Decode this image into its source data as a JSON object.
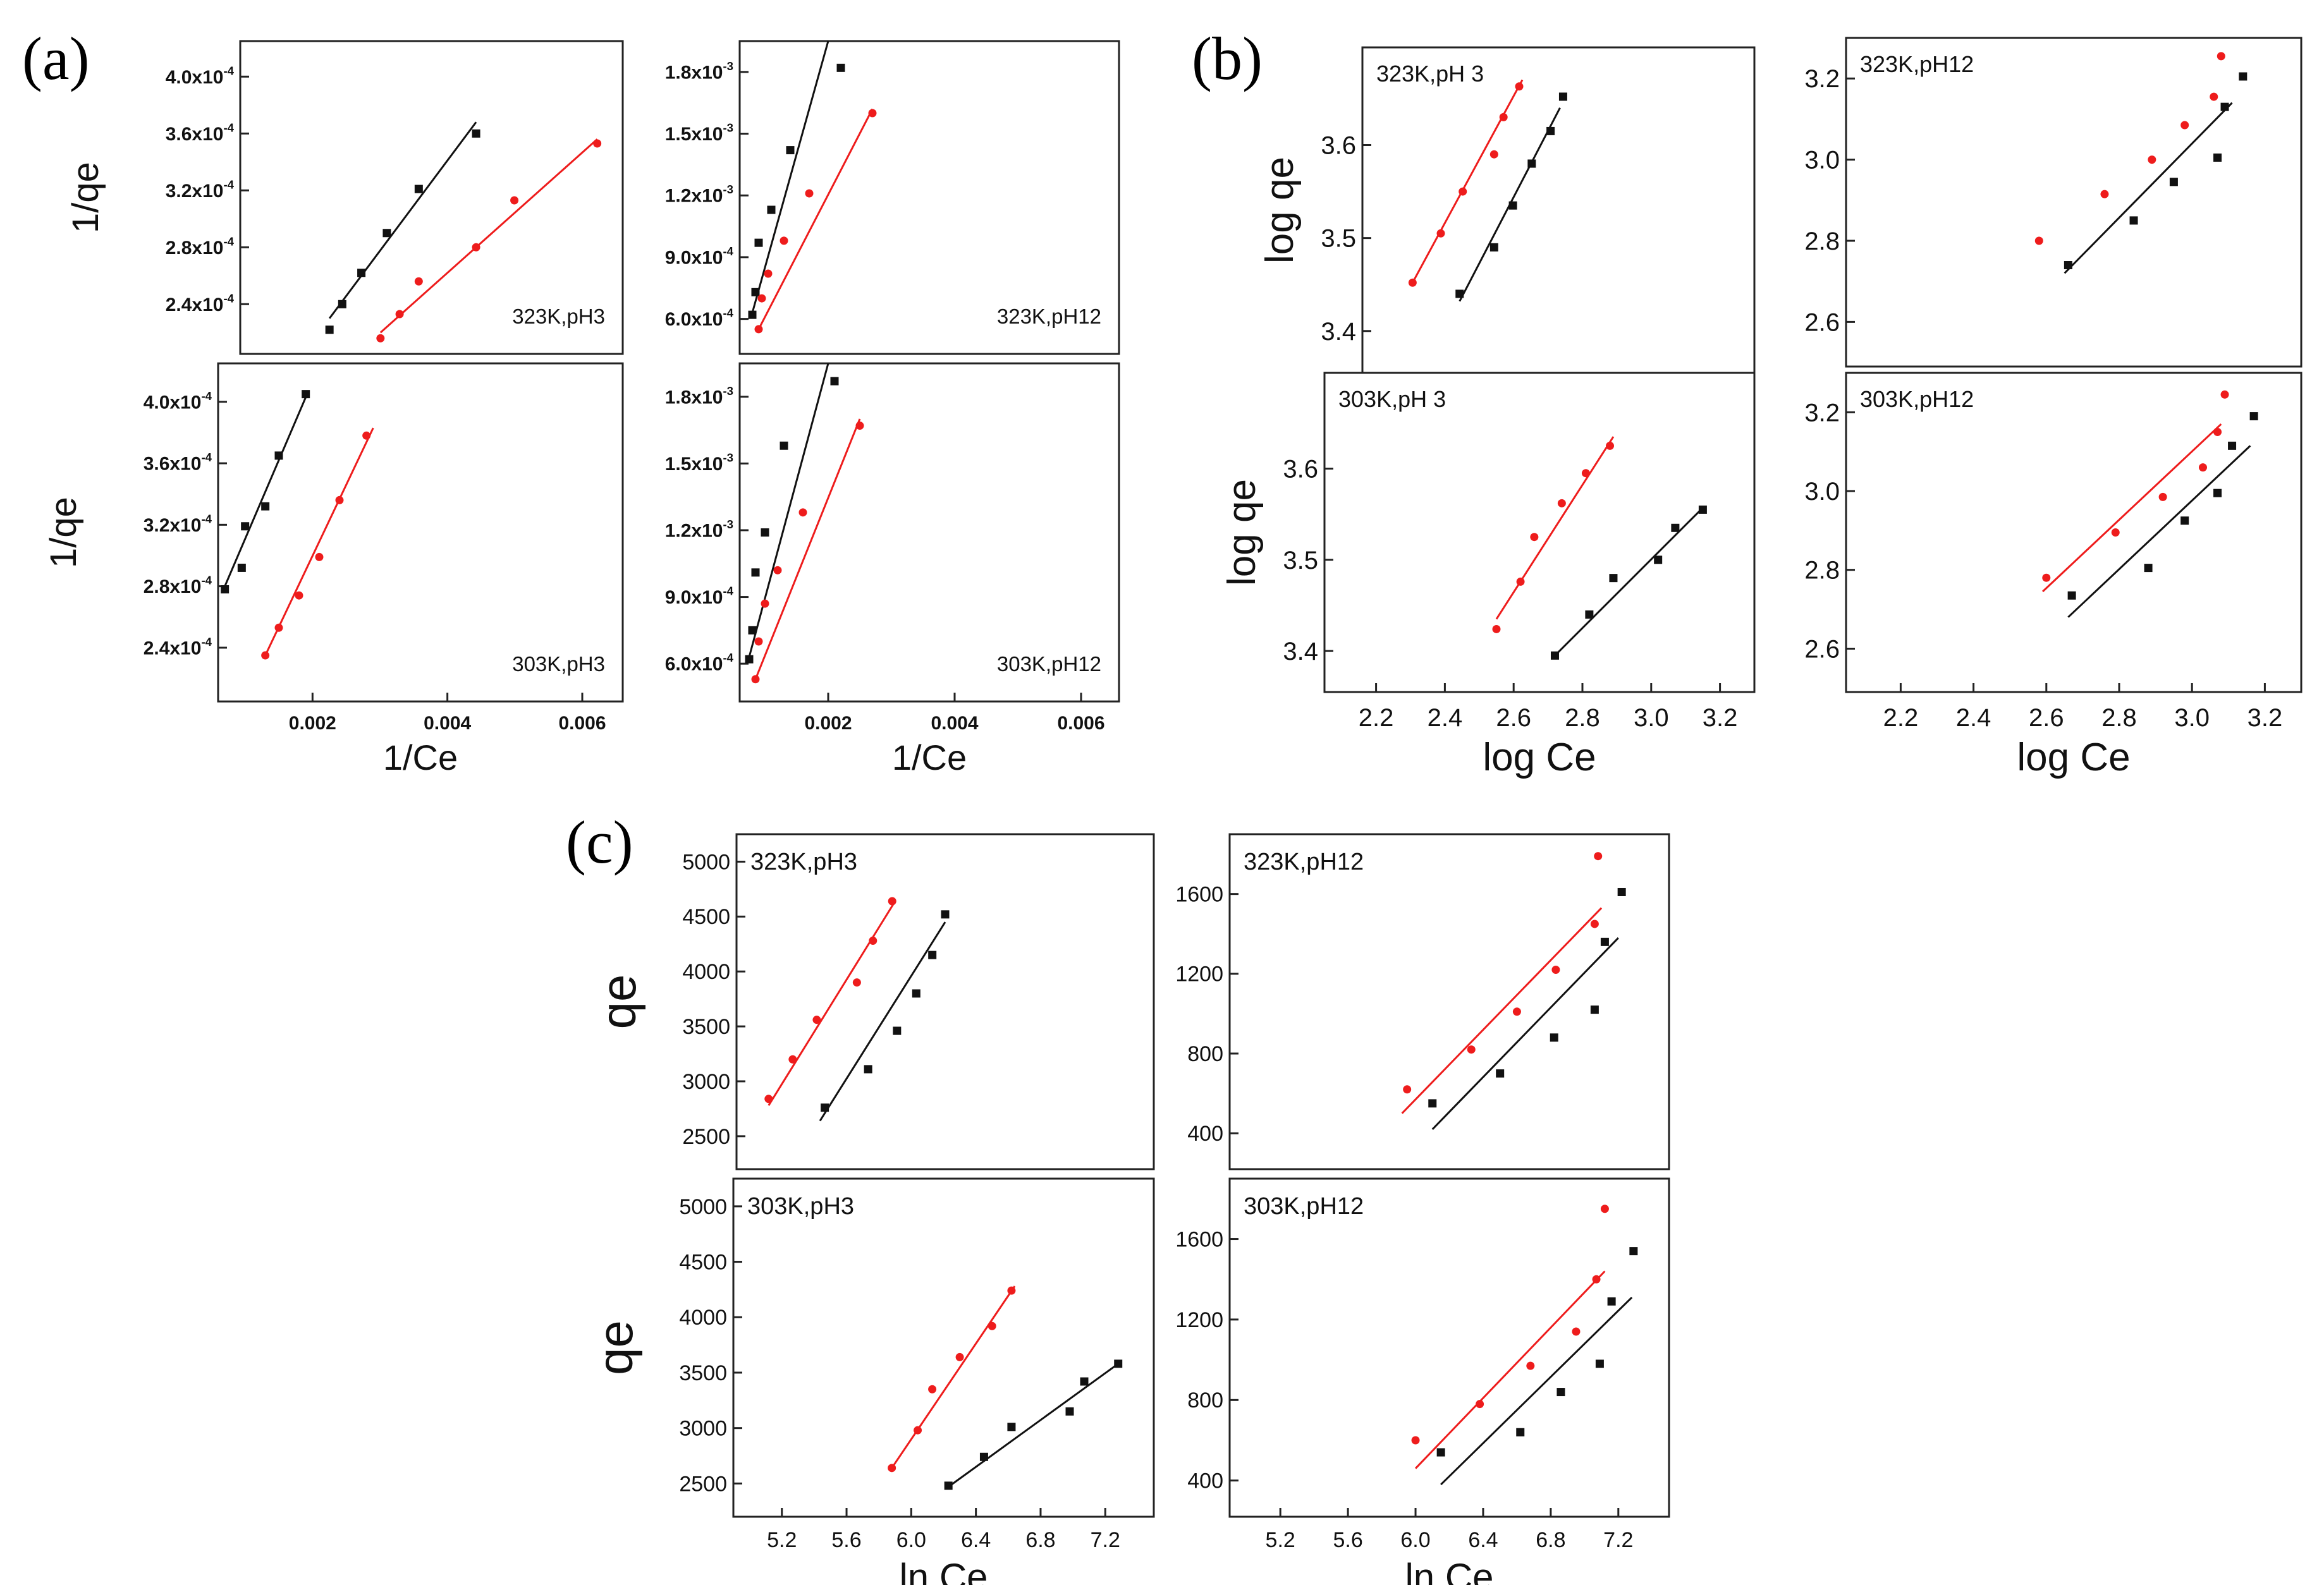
{
  "figure": {
    "panel_labels": [
      "(a)",
      "(b)",
      "(c)"
    ],
    "colors": {
      "black_series": "#111111",
      "red_series": "#ee1c1c",
      "axis": "#222222"
    }
  },
  "chart_data": [
    {
      "id": "a1",
      "group": "(a)",
      "type": "scatter",
      "title": "323K,pH3",
      "xlabel": "",
      "ylabel": "1/qe",
      "xlim": [
        0.0006,
        0.0066
      ],
      "ylim": [
        0.000205,
        0.000425
      ],
      "xticks": [],
      "yticks": [
        0.00024,
        0.00028,
        0.00032,
        0.00036,
        0.0004
      ],
      "ytick_labels": [
        "2.4x10-4",
        "2.8x10-4",
        "3.2x10-4",
        "3.6x10-4",
        "4.0x10-4"
      ],
      "series": [
        {
          "name": "black",
          "x": [
            0.002,
            0.0022,
            0.0025,
            0.0029,
            0.0034,
            0.0043
          ],
          "y": [
            0.000222,
            0.00024,
            0.000262,
            0.00029,
            0.000321,
            0.00036
          ],
          "fit": [
            [
              0.002,
              0.00023
            ],
            [
              0.0043,
              0.000368
            ]
          ]
        },
        {
          "name": "red",
          "x": [
            0.0028,
            0.0031,
            0.0034,
            0.0043,
            0.0049,
            0.0062
          ],
          "y": [
            0.000216,
            0.000233,
            0.000256,
            0.00028,
            0.000313,
            0.000353
          ],
          "fit": [
            [
              0.0028,
              0.00022
            ],
            [
              0.0062,
              0.000356
            ]
          ]
        }
      ]
    },
    {
      "id": "a2",
      "group": "(a)",
      "type": "scatter",
      "title": "323K,pH12",
      "xlabel": "",
      "ylabel": "",
      "xlim": [
        0.0006,
        0.0066
      ],
      "ylim": [
        0.00043,
        0.00195
      ],
      "xticks": [],
      "yticks": [
        0.0006,
        0.0009,
        0.0012,
        0.0015,
        0.0018
      ],
      "ytick_labels": [
        "6.0x10-4",
        "9.0x10-4",
        "1.2x10-3",
        "1.5x10-3",
        "1.8x10-3"
      ],
      "series": [
        {
          "name": "black",
          "x": [
            0.0008,
            0.00085,
            0.0009,
            0.0011,
            0.0014,
            0.0022
          ],
          "y": [
            0.00062,
            0.00073,
            0.00097,
            0.00113,
            0.00142,
            0.00182
          ],
          "fit": [
            [
              0.0008,
              0.00063
            ],
            [
              0.002,
              0.00195
            ]
          ]
        },
        {
          "name": "red",
          "x": [
            0.0009,
            0.00095,
            0.00105,
            0.0013,
            0.0017,
            0.0027
          ],
          "y": [
            0.00055,
            0.0007,
            0.00082,
            0.00098,
            0.00121,
            0.0016
          ],
          "fit": [
            [
              0.0009,
              0.00055
            ],
            [
              0.0027,
              0.00162
            ]
          ]
        }
      ]
    },
    {
      "id": "a3",
      "group": "(a)",
      "type": "scatter",
      "title": "303K,pH3",
      "xlabel": "1/Ce",
      "ylabel": "1/qe",
      "xlim": [
        0.0006,
        0.0066
      ],
      "ylim": [
        0.000205,
        0.000425
      ],
      "xticks": [
        0.002,
        0.004,
        0.006
      ],
      "xtick_labels": [
        "0.002",
        "0.004",
        "0.006"
      ],
      "yticks": [
        0.00024,
        0.00028,
        0.00032,
        0.00036,
        0.0004
      ],
      "ytick_labels": [
        "2.4x10-4",
        "2.8x10-4",
        "3.2x10-4",
        "3.6x10-4",
        "4.0x10-4"
      ],
      "series": [
        {
          "name": "black",
          "x": [
            0.0007,
            0.00095,
            0.001,
            0.0013,
            0.0015,
            0.0019
          ],
          "y": [
            0.000278,
            0.000292,
            0.000319,
            0.000332,
            0.000365,
            0.000405
          ],
          "fit": [
            [
              0.0007,
              0.00028
            ],
            [
              0.0019,
              0.000403
            ]
          ]
        },
        {
          "name": "red",
          "x": [
            0.0013,
            0.0015,
            0.0018,
            0.0021,
            0.0024,
            0.0028
          ],
          "y": [
            0.000235,
            0.000253,
            0.000274,
            0.000299,
            0.000336,
            0.000378
          ],
          "fit": [
            [
              0.0013,
              0.000235
            ],
            [
              0.0029,
              0.000383
            ]
          ]
        }
      ]
    },
    {
      "id": "a4",
      "group": "(a)",
      "type": "scatter",
      "title": "303K,pH12",
      "xlabel": "1/Ce",
      "ylabel": "",
      "xlim": [
        0.0006,
        0.0066
      ],
      "ylim": [
        0.00043,
        0.00195
      ],
      "xticks": [
        0.002,
        0.004,
        0.006
      ],
      "xtick_labels": [
        "0.002",
        "0.004",
        "0.006"
      ],
      "yticks": [
        0.0006,
        0.0009,
        0.0012,
        0.0015,
        0.0018
      ],
      "ytick_labels": [
        "6.0x10-4",
        "9.0x10-4",
        "1.2x10-3",
        "1.5x10-3",
        "1.8x10-3"
      ],
      "series": [
        {
          "name": "black",
          "x": [
            0.00075,
            0.0008,
            0.00085,
            0.001,
            0.0013,
            0.0021
          ],
          "y": [
            0.00062,
            0.00075,
            0.00101,
            0.00119,
            0.00158,
            0.00187
          ],
          "fit": [
            [
              0.00075,
              0.00063
            ],
            [
              0.002,
              0.00195
            ]
          ]
        },
        {
          "name": "red",
          "x": [
            0.00085,
            0.0009,
            0.001,
            0.0012,
            0.0016,
            0.0025
          ],
          "y": [
            0.00053,
            0.0007,
            0.00087,
            0.00102,
            0.00128,
            0.00167
          ],
          "fit": [
            [
              0.00085,
              0.00053
            ],
            [
              0.0025,
              0.0017
            ]
          ]
        }
      ]
    },
    {
      "id": "b1",
      "group": "(b)",
      "type": "scatter",
      "title": "323K,pH 3",
      "xlabel": "",
      "ylabel": "log qe",
      "xlim": [
        2.05,
        3.3
      ],
      "ylim": [
        3.355,
        3.705
      ],
      "xticks": [],
      "yticks": [
        3.4,
        3.5,
        3.6
      ],
      "ytick_labels": [
        "3.4",
        "3.5",
        "3.6"
      ],
      "series": [
        {
          "name": "black",
          "x": [
            2.36,
            2.47,
            2.53,
            2.59,
            2.65,
            2.69
          ],
          "y": [
            3.44,
            3.49,
            3.535,
            3.58,
            3.615,
            3.652
          ],
          "fit": [
            [
              2.36,
              3.432
            ],
            [
              2.68,
              3.64
            ]
          ]
        },
        {
          "name": "red",
          "x": [
            2.21,
            2.3,
            2.37,
            2.47,
            2.5,
            2.55
          ],
          "y": [
            3.452,
            3.505,
            3.55,
            3.59,
            3.63,
            3.663
          ],
          "fit": [
            [
              2.21,
              3.452
            ],
            [
              2.56,
              3.67
            ]
          ]
        }
      ]
    },
    {
      "id": "b2",
      "group": "(b)",
      "type": "scatter",
      "title": "323K,pH12",
      "xlabel": "",
      "ylabel": "",
      "xlim": [
        2.05,
        3.3
      ],
      "ylim": [
        2.49,
        3.3
      ],
      "xticks": [],
      "yticks": [
        2.6,
        2.8,
        3.0,
        3.2
      ],
      "ytick_labels": [
        "2.6",
        "2.8",
        "3.0",
        "3.2"
      ],
      "series": [
        {
          "name": "black",
          "x": [
            2.66,
            2.84,
            2.95,
            3.07,
            3.09,
            3.14
          ],
          "y": [
            2.74,
            2.85,
            2.945,
            3.005,
            3.13,
            3.205
          ],
          "fit": [
            [
              2.65,
              2.72
            ],
            [
              3.11,
              3.14
            ]
          ]
        },
        {
          "name": "red",
          "x": [
            2.58,
            2.76,
            2.89,
            2.98,
            3.06,
            3.08
          ],
          "y": [
            2.8,
            2.915,
            3.0,
            3.085,
            3.155,
            3.255
          ],
          "fit": null
        }
      ]
    },
    {
      "id": "b3",
      "group": "(b)",
      "type": "scatter",
      "title": "303K,pH 3",
      "xlabel": "log Ce",
      "ylabel": "log qe",
      "xlim": [
        2.05,
        3.3
      ],
      "ylim": [
        3.355,
        3.705
      ],
      "xticks": [
        2.2,
        2.4,
        2.6,
        2.8,
        3.0,
        3.2
      ],
      "xtick_labels": [
        "2.2",
        "2.4",
        "2.6",
        "2.8",
        "3.0",
        "3.2"
      ],
      "yticks": [
        3.4,
        3.5,
        3.6
      ],
      "ytick_labels": [
        "3.4",
        "3.5",
        "3.6"
      ],
      "series": [
        {
          "name": "black",
          "x": [
            2.72,
            2.82,
            2.89,
            3.02,
            3.07,
            3.15
          ],
          "y": [
            3.395,
            3.44,
            3.48,
            3.5,
            3.535,
            3.555
          ],
          "fit": [
            [
              2.72,
              3.395
            ],
            [
              3.15,
              3.557
            ]
          ]
        },
        {
          "name": "red",
          "x": [
            2.55,
            2.62,
            2.66,
            2.74,
            2.81,
            2.88
          ],
          "y": [
            3.424,
            3.476,
            3.525,
            3.562,
            3.595,
            3.625
          ],
          "fit": [
            [
              2.55,
              3.435
            ],
            [
              2.89,
              3.635
            ]
          ]
        }
      ]
    },
    {
      "id": "b4",
      "group": "(b)",
      "type": "scatter",
      "title": "303K,pH12",
      "xlabel": "log Ce",
      "ylabel": "",
      "xlim": [
        2.05,
        3.3
      ],
      "ylim": [
        2.49,
        3.3
      ],
      "xticks": [
        2.2,
        2.4,
        2.6,
        2.8,
        3.0,
        3.2
      ],
      "xtick_labels": [
        "2.2",
        "2.4",
        "2.6",
        "2.8",
        "3.0",
        "3.2"
      ],
      "yticks": [
        2.6,
        2.8,
        3.0,
        3.2
      ],
      "ytick_labels": [
        "2.6",
        "2.8",
        "3.0",
        "3.2"
      ],
      "series": [
        {
          "name": "black",
          "x": [
            2.67,
            2.88,
            2.98,
            3.07,
            3.11,
            3.17
          ],
          "y": [
            2.735,
            2.805,
            2.925,
            2.995,
            3.115,
            3.19
          ],
          "fit": [
            [
              2.66,
              2.68
            ],
            [
              3.16,
              3.115
            ]
          ]
        },
        {
          "name": "red",
          "x": [
            2.6,
            2.79,
            2.92,
            3.03,
            3.07,
            3.09
          ],
          "y": [
            2.78,
            2.895,
            2.985,
            3.06,
            3.15,
            3.245
          ],
          "fit": [
            [
              2.59,
              2.745
            ],
            [
              3.08,
              3.17
            ]
          ]
        }
      ]
    },
    {
      "id": "c1",
      "group": "(c)",
      "type": "scatter",
      "title": "323K,pH3",
      "xlabel": "",
      "ylabel": "qe",
      "xlim": [
        4.9,
        7.5
      ],
      "ylim": [
        2200,
        5250
      ],
      "xticks": [],
      "yticks": [
        2500,
        3000,
        3500,
        4000,
        4500,
        5000
      ],
      "ytick_labels": [
        "2500",
        "3000",
        "3500",
        "4000",
        "4500",
        "5000"
      ],
      "series": [
        {
          "name": "black",
          "x": [
            5.45,
            5.72,
            5.9,
            6.02,
            6.12,
            6.2
          ],
          "y": [
            2760,
            3110,
            3460,
            3800,
            4150,
            4520
          ],
          "fit": [
            [
              5.42,
              2640
            ],
            [
              6.2,
              4450
            ]
          ]
        },
        {
          "name": "red",
          "x": [
            5.1,
            5.25,
            5.4,
            5.65,
            5.75,
            5.87
          ],
          "y": [
            2840,
            3200,
            3560,
            3900,
            4280,
            4640
          ],
          "fit": [
            [
              5.1,
              2780
            ],
            [
              5.88,
              4620
            ]
          ]
        }
      ]
    },
    {
      "id": "c2",
      "group": "(c)",
      "type": "scatter",
      "title": "323K,pH12",
      "xlabel": "",
      "ylabel": "",
      "xlim": [
        4.9,
        7.5
      ],
      "ylim": [
        220,
        1900
      ],
      "xticks": [],
      "yticks": [
        400,
        800,
        1200,
        1600
      ],
      "ytick_labels": [
        "400",
        "800",
        "1200",
        "1600"
      ],
      "series": [
        {
          "name": "black",
          "x": [
            6.1,
            6.5,
            6.82,
            7.06,
            7.12,
            7.22
          ],
          "y": [
            550,
            700,
            880,
            1020,
            1360,
            1610
          ],
          "fit": [
            [
              6.1,
              420
            ],
            [
              7.2,
              1380
            ]
          ]
        },
        {
          "name": "red",
          "x": [
            5.95,
            6.33,
            6.6,
            6.83,
            7.06,
            7.08
          ],
          "y": [
            620,
            820,
            1010,
            1220,
            1450,
            1790
          ],
          "fit": [
            [
              5.92,
              500
            ],
            [
              7.1,
              1530
            ]
          ]
        }
      ]
    },
    {
      "id": "c3",
      "group": "(c)",
      "type": "scatter",
      "title": "303K,pH3",
      "xlabel": "ln Ce",
      "ylabel": "qe",
      "xlim": [
        4.9,
        7.5
      ],
      "ylim": [
        2200,
        5250
      ],
      "xticks": [
        5.2,
        5.6,
        6.0,
        6.4,
        6.8,
        7.2
      ],
      "xtick_labels": [
        "5.2",
        "5.6",
        "6.0",
        "6.4",
        "6.8",
        "7.2"
      ],
      "yticks": [
        2500,
        3000,
        3500,
        4000,
        4500,
        5000
      ],
      "ytick_labels": [
        "2500",
        "3000",
        "3500",
        "4000",
        "4500",
        "5000"
      ],
      "series": [
        {
          "name": "black",
          "x": [
            6.23,
            6.45,
            6.62,
            6.98,
            7.07,
            7.28
          ],
          "y": [
            2480,
            2740,
            3010,
            3150,
            3420,
            3580
          ],
          "fit": [
            [
              6.23,
              2470
            ],
            [
              7.28,
              3580
            ]
          ]
        },
        {
          "name": "red",
          "x": [
            5.88,
            6.04,
            6.13,
            6.3,
            6.5,
            6.62
          ],
          "y": [
            2640,
            2980,
            3350,
            3640,
            3920,
            4240
          ],
          "fit": [
            [
              5.88,
              2640
            ],
            [
              6.64,
              4280
            ]
          ]
        }
      ]
    },
    {
      "id": "c4",
      "group": "(c)",
      "type": "scatter",
      "title": "303K,pH12",
      "xlabel": "ln Ce",
      "ylabel": "",
      "xlim": [
        4.9,
        7.5
      ],
      "ylim": [
        220,
        1900
      ],
      "xticks": [
        5.2,
        5.6,
        6.0,
        6.4,
        6.8,
        7.2
      ],
      "xtick_labels": [
        "5.2",
        "5.6",
        "6.0",
        "6.4",
        "6.8",
        "7.2"
      ],
      "yticks": [
        400,
        800,
        1200,
        1600
      ],
      "ytick_labels": [
        "400",
        "800",
        "1200",
        "1600"
      ],
      "series": [
        {
          "name": "black",
          "x": [
            6.15,
            6.62,
            6.86,
            7.09,
            7.16,
            7.29
          ],
          "y": [
            540,
            640,
            840,
            980,
            1290,
            1540
          ],
          "fit": [
            [
              6.15,
              380
            ],
            [
              7.28,
              1310
            ]
          ]
        },
        {
          "name": "red",
          "x": [
            6.0,
            6.38,
            6.68,
            6.95,
            7.07,
            7.12
          ],
          "y": [
            600,
            780,
            970,
            1140,
            1400,
            1750
          ],
          "fit": [
            [
              6.0,
              460
            ],
            [
              7.12,
              1440
            ]
          ]
        }
      ]
    }
  ]
}
